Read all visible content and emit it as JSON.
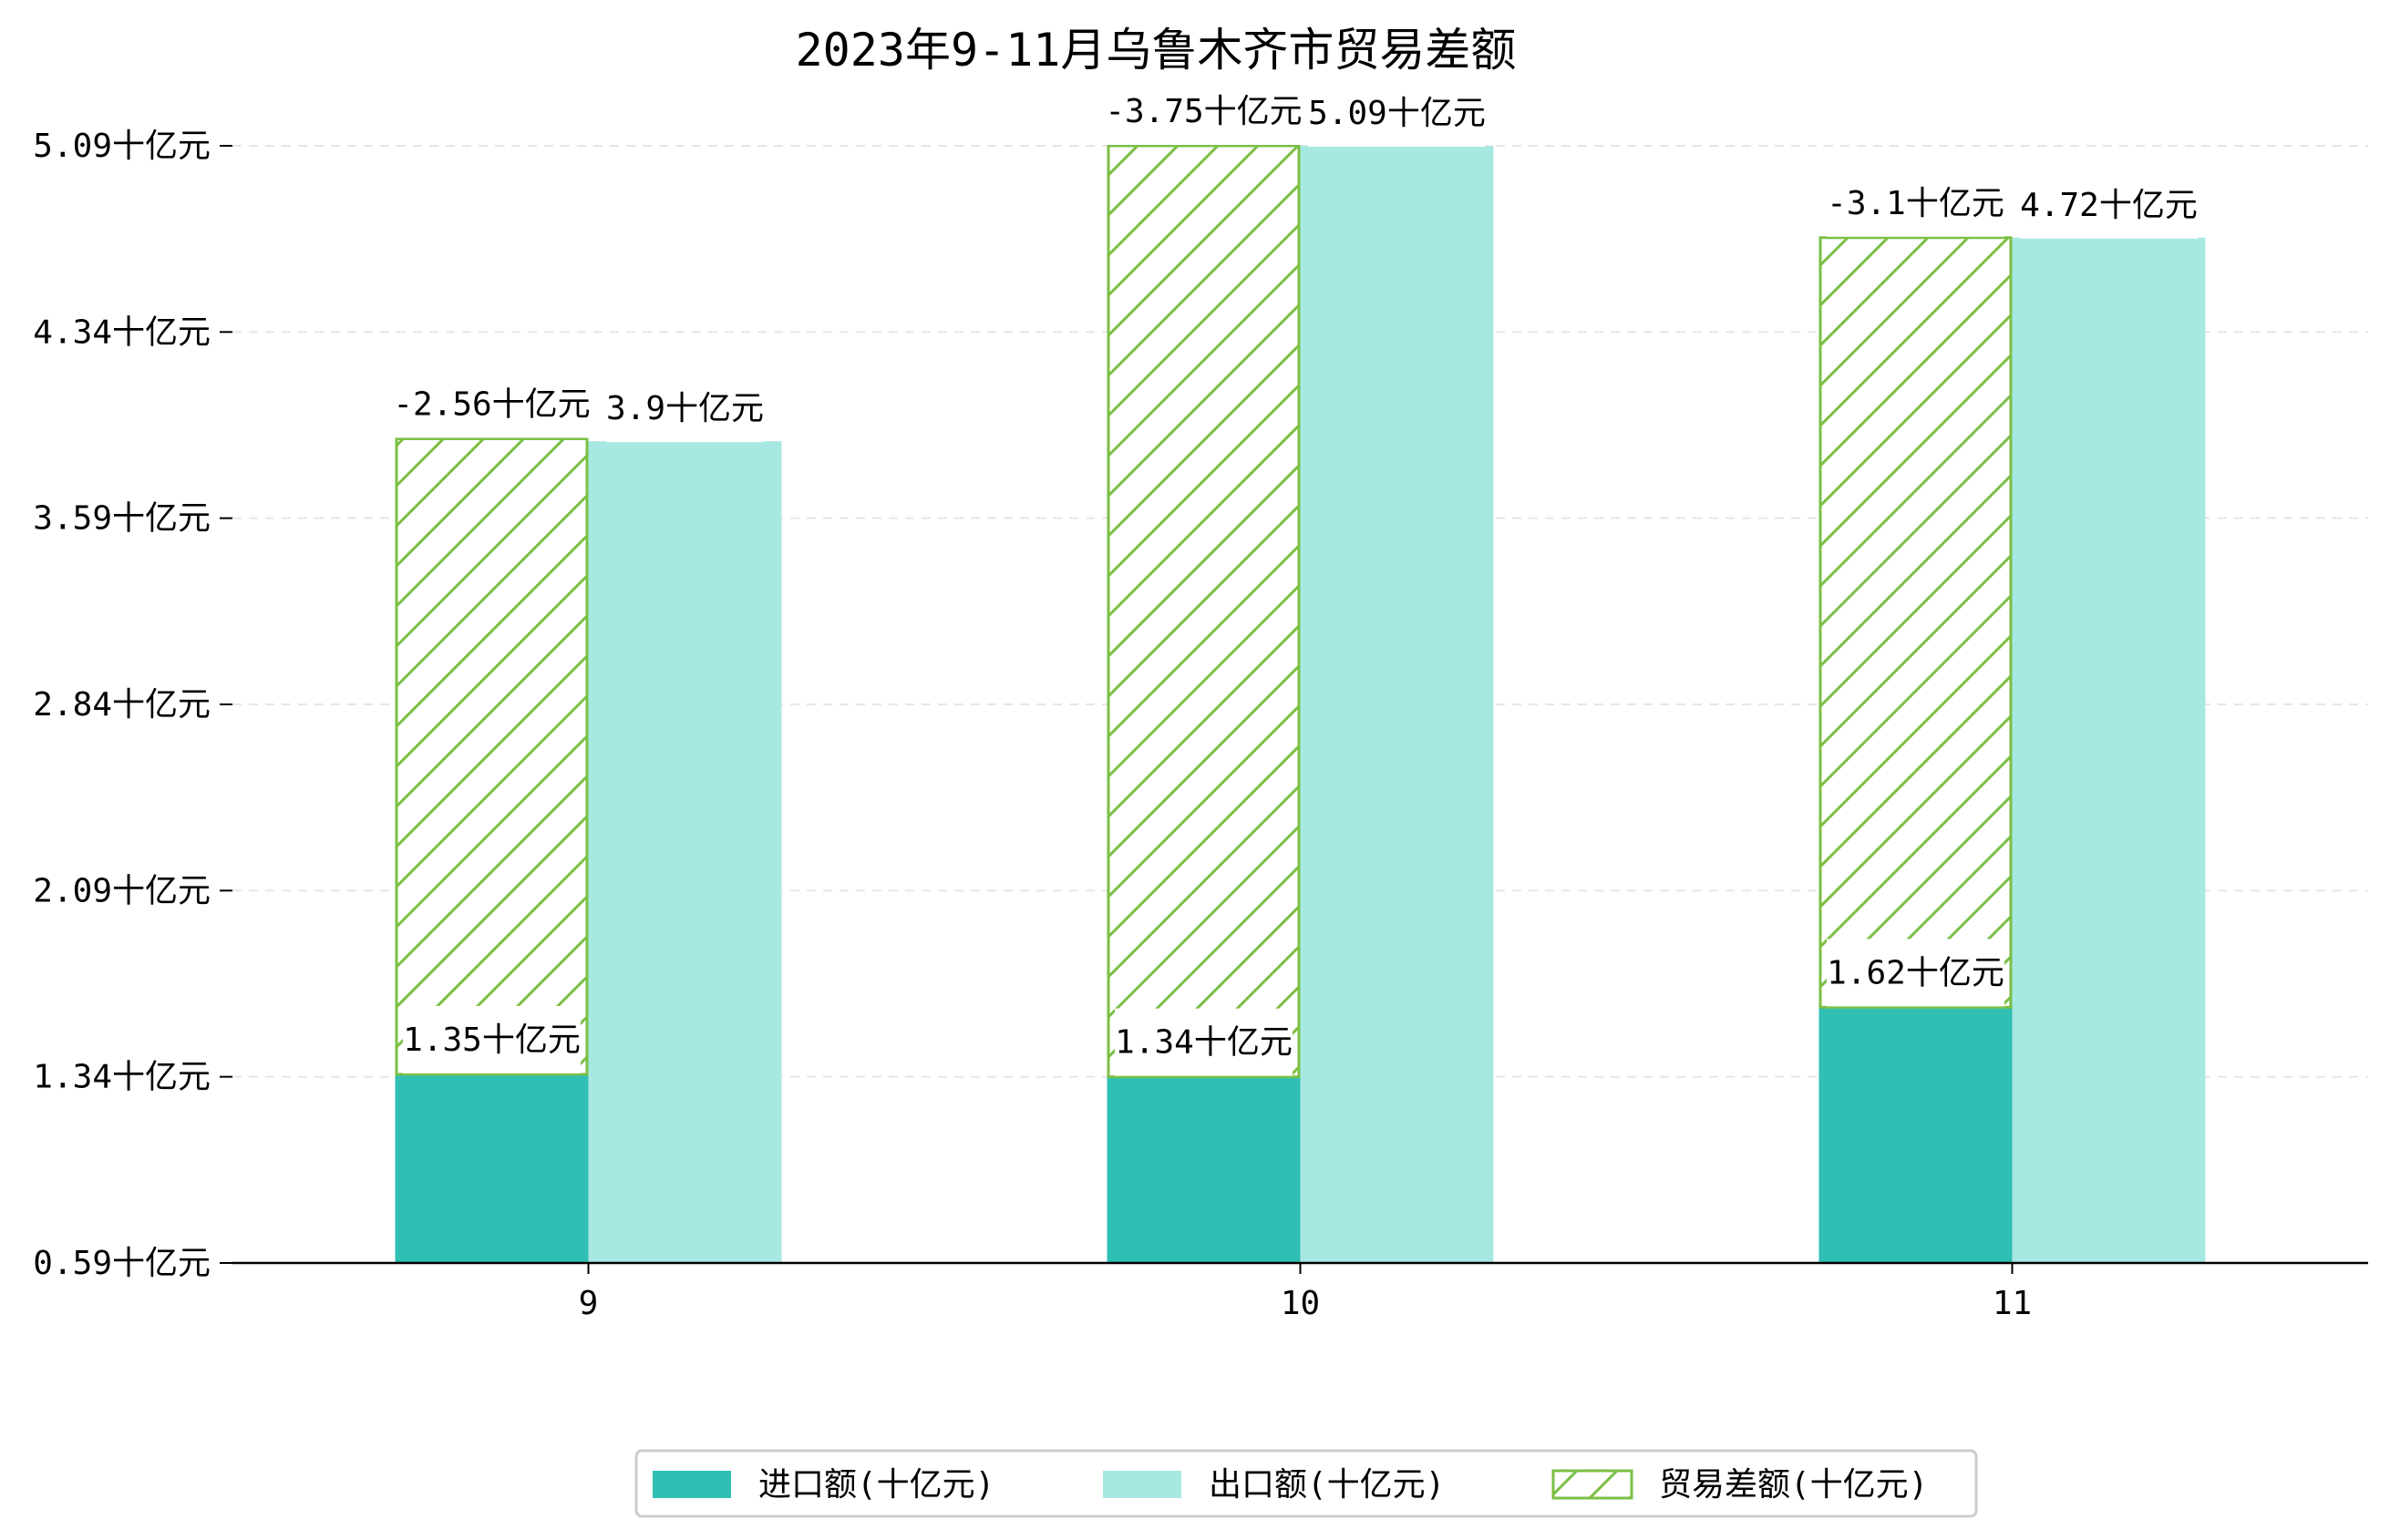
{
  "chart_data": {
    "type": "bar",
    "title": "2023年9-11月乌鲁木齐市贸易差额",
    "categories": [
      "9",
      "10",
      "11"
    ],
    "unit_suffix": "十亿元",
    "yticks": [
      "0.59十亿元",
      "1.34十亿元",
      "2.09十亿元",
      "2.84十亿元",
      "3.59十亿元",
      "4.34十亿元",
      "5.09十亿元"
    ],
    "ylim": [
      0.59,
      5.09
    ],
    "grid": "horizontal-dashed",
    "legend_position": "bottom-center",
    "series": [
      {
        "name": "进口额(十亿元)",
        "values": [
          1.35,
          1.34,
          1.62
        ],
        "labels": [
          "1.35十亿元",
          "1.34十亿元",
          "1.62十亿元"
        ],
        "color": "#2fbfb3"
      },
      {
        "name": "出口额(十亿元)",
        "values": [
          3.9,
          5.09,
          4.72
        ],
        "labels": [
          "3.9十亿元",
          "5.09十亿元",
          "4.72十亿元"
        ],
        "color": "#a8e8e2"
      },
      {
        "name": "贸易差额(十亿元)",
        "values": [
          -2.56,
          -3.75,
          -3.1
        ],
        "labels": [
          "-2.56十亿元",
          "-3.75十亿元",
          "-3.1十亿元"
        ],
        "color": "#7bbf45",
        "style": "hatched, stacked on 进口额"
      }
    ]
  }
}
